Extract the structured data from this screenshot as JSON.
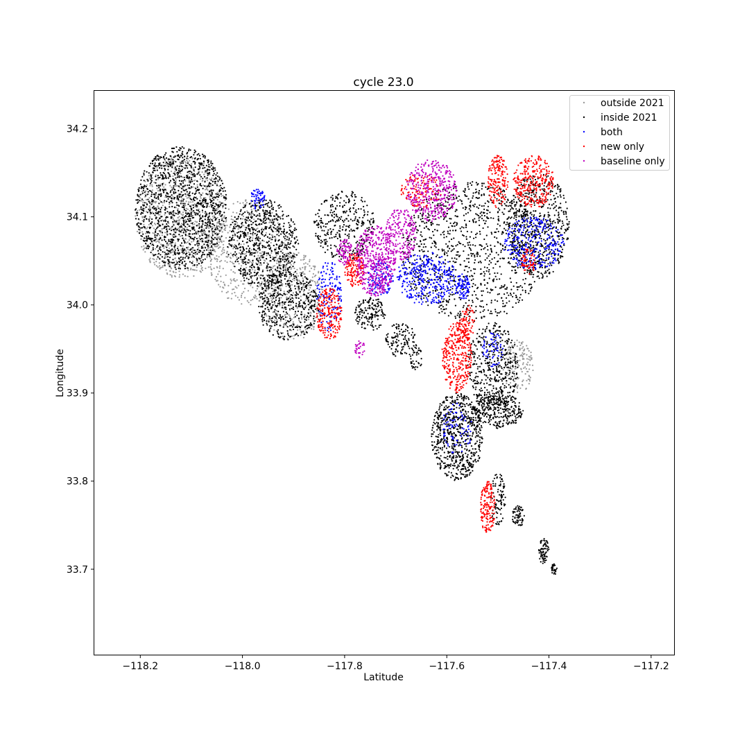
{
  "chart_data": {
    "type": "scatter",
    "title": "cycle 23.0",
    "xlabel": "Latitude",
    "ylabel": "Longitude",
    "xlim": [
      -118.29,
      -117.155
    ],
    "ylim": [
      33.603,
      34.243
    ],
    "xticks": [
      -118.2,
      -118.0,
      -117.8,
      -117.6,
      -117.4,
      -117.2
    ],
    "xtick_labels": [
      "−118.2",
      "−118.0",
      "−117.8",
      "−117.6",
      "−117.4",
      "−117.2"
    ],
    "yticks": [
      33.7,
      33.8,
      33.9,
      34.0,
      34.1,
      34.2
    ],
    "ytick_labels": [
      "33.7",
      "33.8",
      "33.9",
      "34.0",
      "34.1",
      "34.2"
    ],
    "grid": false,
    "legend_position": "upper right",
    "series": [
      {
        "name": "outside 2021",
        "color": "#999999",
        "regions": [
          {
            "cx": -118.12,
            "cy": 34.1,
            "rx": 0.09,
            "ry": 0.07,
            "n": 900
          },
          {
            "cx": -117.99,
            "cy": 34.06,
            "rx": 0.08,
            "ry": 0.06,
            "n": 500
          },
          {
            "cx": -117.9,
            "cy": 34.01,
            "rx": 0.06,
            "ry": 0.05,
            "n": 400
          },
          {
            "cx": -117.46,
            "cy": 33.93,
            "rx": 0.03,
            "ry": 0.03,
            "n": 150
          }
        ]
      },
      {
        "name": "inside 2021",
        "color": "#000000",
        "regions": [
          {
            "cx": -118.12,
            "cy": 34.11,
            "rx": 0.09,
            "ry": 0.07,
            "n": 1300
          },
          {
            "cx": -117.96,
            "cy": 34.07,
            "rx": 0.07,
            "ry": 0.05,
            "n": 700
          },
          {
            "cx": -117.91,
            "cy": 34.0,
            "rx": 0.06,
            "ry": 0.04,
            "n": 450
          },
          {
            "cx": -117.8,
            "cy": 34.09,
            "rx": 0.06,
            "ry": 0.04,
            "n": 350
          },
          {
            "cx": -117.55,
            "cy": 34.06,
            "rx": 0.14,
            "ry": 0.08,
            "n": 1100
          },
          {
            "cx": -117.42,
            "cy": 34.09,
            "rx": 0.06,
            "ry": 0.06,
            "n": 600
          },
          {
            "cx": -117.51,
            "cy": 33.93,
            "rx": 0.05,
            "ry": 0.05,
            "n": 450
          },
          {
            "cx": -117.58,
            "cy": 33.85,
            "rx": 0.05,
            "ry": 0.05,
            "n": 700
          },
          {
            "cx": -117.5,
            "cy": 33.88,
            "rx": 0.05,
            "ry": 0.02,
            "n": 300
          },
          {
            "cx": -117.75,
            "cy": 33.99,
            "rx": 0.03,
            "ry": 0.02,
            "n": 150
          },
          {
            "cx": -117.69,
            "cy": 33.96,
            "rx": 0.03,
            "ry": 0.02,
            "n": 120
          },
          {
            "cx": -117.5,
            "cy": 33.78,
            "rx": 0.015,
            "ry": 0.03,
            "n": 90
          },
          {
            "cx": -117.46,
            "cy": 33.76,
            "rx": 0.012,
            "ry": 0.012,
            "n": 60
          },
          {
            "cx": -117.41,
            "cy": 33.72,
            "rx": 0.01,
            "ry": 0.015,
            "n": 70
          },
          {
            "cx": -117.39,
            "cy": 33.7,
            "rx": 0.006,
            "ry": 0.006,
            "n": 25
          },
          {
            "cx": -117.66,
            "cy": 33.94,
            "rx": 0.012,
            "ry": 0.015,
            "n": 40
          }
        ]
      },
      {
        "name": "both",
        "color": "#0000ff",
        "regions": [
          {
            "cx": -117.64,
            "cy": 34.03,
            "rx": 0.06,
            "ry": 0.03,
            "n": 350
          },
          {
            "cx": -117.43,
            "cy": 34.07,
            "rx": 0.06,
            "ry": 0.03,
            "n": 300
          },
          {
            "cx": -117.83,
            "cy": 34.01,
            "rx": 0.025,
            "ry": 0.04,
            "n": 150
          },
          {
            "cx": -117.73,
            "cy": 34.03,
            "rx": 0.025,
            "ry": 0.02,
            "n": 120
          },
          {
            "cx": -117.57,
            "cy": 34.02,
            "rx": 0.015,
            "ry": 0.015,
            "n": 90
          },
          {
            "cx": -117.97,
            "cy": 34.12,
            "rx": 0.015,
            "ry": 0.012,
            "n": 60
          },
          {
            "cx": -117.58,
            "cy": 33.86,
            "rx": 0.03,
            "ry": 0.03,
            "n": 80
          },
          {
            "cx": -117.51,
            "cy": 33.95,
            "rx": 0.02,
            "ry": 0.02,
            "n": 60
          }
        ]
      },
      {
        "name": "new only",
        "color": "#ff0000",
        "regions": [
          {
            "cx": -117.43,
            "cy": 34.14,
            "rx": 0.04,
            "ry": 0.03,
            "n": 300
          },
          {
            "cx": -117.58,
            "cy": 33.94,
            "rx": 0.03,
            "ry": 0.04,
            "n": 350
          },
          {
            "cx": -117.83,
            "cy": 33.99,
            "rx": 0.025,
            "ry": 0.03,
            "n": 220
          },
          {
            "cx": -117.5,
            "cy": 34.14,
            "rx": 0.02,
            "ry": 0.03,
            "n": 180
          },
          {
            "cx": -117.78,
            "cy": 34.04,
            "rx": 0.02,
            "ry": 0.02,
            "n": 140
          },
          {
            "cx": -117.52,
            "cy": 33.77,
            "rx": 0.015,
            "ry": 0.03,
            "n": 160
          },
          {
            "cx": -117.65,
            "cy": 34.13,
            "rx": 0.04,
            "ry": 0.02,
            "n": 120
          },
          {
            "cx": -117.56,
            "cy": 33.98,
            "rx": 0.015,
            "ry": 0.02,
            "n": 80
          },
          {
            "cx": -117.44,
            "cy": 34.05,
            "rx": 0.015,
            "ry": 0.015,
            "n": 60
          }
        ]
      },
      {
        "name": "baseline only",
        "color": "#bf00bf",
        "regions": [
          {
            "cx": -117.74,
            "cy": 34.05,
            "rx": 0.04,
            "ry": 0.04,
            "n": 500
          },
          {
            "cx": -117.63,
            "cy": 34.13,
            "rx": 0.05,
            "ry": 0.035,
            "n": 400
          },
          {
            "cx": -117.69,
            "cy": 34.08,
            "rx": 0.03,
            "ry": 0.03,
            "n": 200
          },
          {
            "cx": -117.8,
            "cy": 34.06,
            "rx": 0.015,
            "ry": 0.015,
            "n": 80
          },
          {
            "cx": -117.77,
            "cy": 33.95,
            "rx": 0.01,
            "ry": 0.01,
            "n": 30
          }
        ]
      }
    ]
  }
}
